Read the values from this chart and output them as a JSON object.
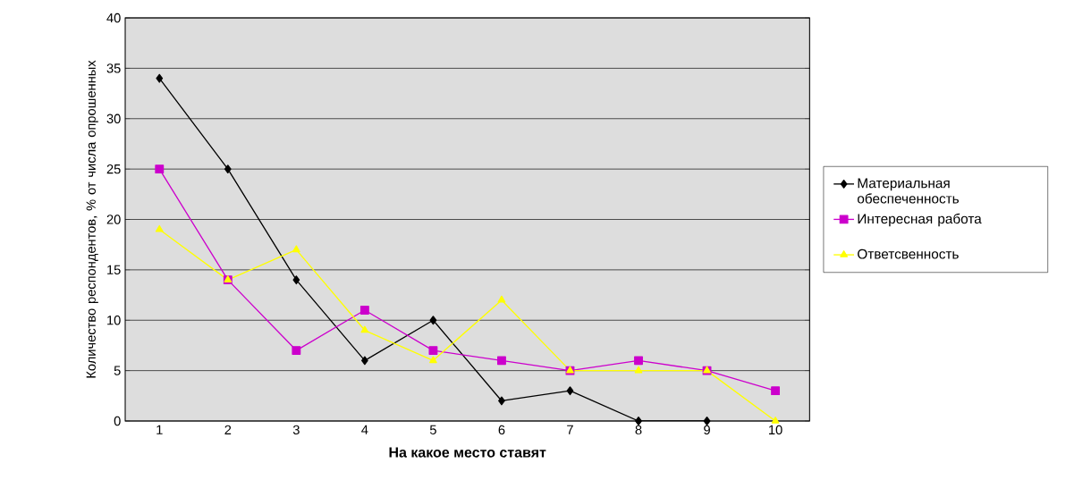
{
  "chart_data": {
    "type": "line",
    "xlabel": "На какое место ставят",
    "ylabel": "Количество респондентов, % от числа опрошенных",
    "categories": [
      "1",
      "2",
      "3",
      "4",
      "5",
      "6",
      "7",
      "8",
      "9",
      "10"
    ],
    "series": [
      {
        "name": "Материальная обеспеченность",
        "color": "#000000",
        "marker": "diamond",
        "values": [
          34,
          25,
          14,
          6,
          10,
          2,
          3,
          0,
          0,
          null
        ]
      },
      {
        "name": "Интересная работа",
        "color": "#cc00cc",
        "marker": "square",
        "values": [
          25,
          14,
          7,
          11,
          7,
          6,
          5,
          6,
          5,
          3
        ]
      },
      {
        "name": "Ответсвенность",
        "color": "#ffff00",
        "marker": "triangle",
        "values": [
          19,
          14,
          17,
          9,
          6,
          12,
          5,
          5,
          5,
          0
        ]
      }
    ],
    "ylim": [
      0,
      40
    ],
    "yticks": [
      0,
      5,
      10,
      15,
      20,
      25,
      30,
      35,
      40
    ],
    "grid": "y",
    "legend": "right",
    "line_style": "solid"
  }
}
